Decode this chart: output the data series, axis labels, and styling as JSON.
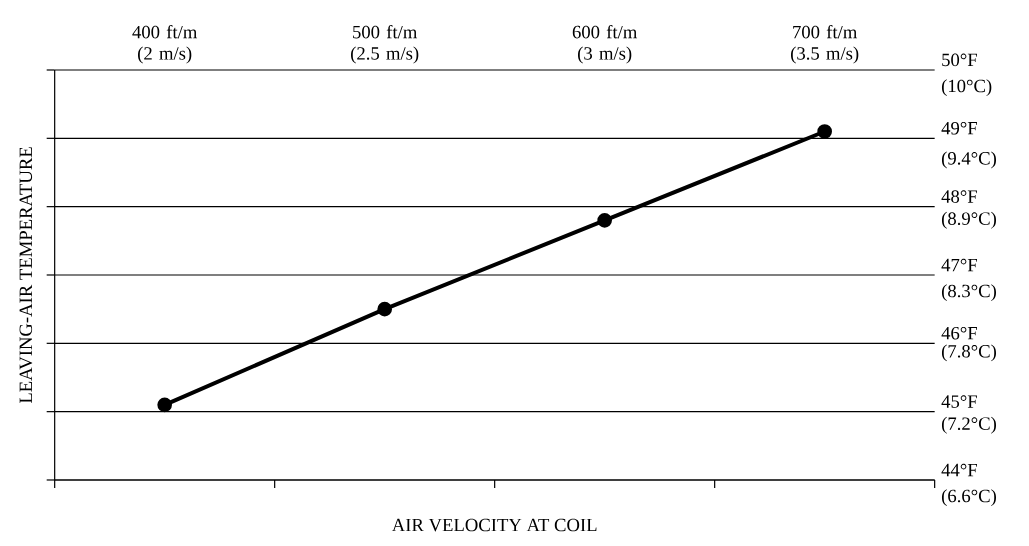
{
  "chart_data": {
    "type": "line",
    "xlabel": "AIR VELOCITY AT COIL",
    "ylabel": "LEAVING-AIR TEMPERATURE",
    "categories": [
      "400 ft/m (2 m/s)",
      "500 ft/m (2.5 m/s)",
      "600 ft/m (3 m/s)",
      "700 ft/m (3.5 m/s)"
    ],
    "values": [
      45.1,
      46.5,
      47.8,
      49.1
    ],
    "color": "#000000",
    "marker": "circle",
    "line_style": "solid",
    "grid": "y",
    "ylim": [
      44,
      50
    ],
    "yticks": [
      {
        "value": 44,
        "label": "44°F"
      },
      {
        "value": 45,
        "label": "45°F"
      },
      {
        "value": 46,
        "label": "46°F"
      },
      {
        "value": 47,
        "label": "47°F"
      },
      {
        "value": 48,
        "label": "48°F"
      },
      {
        "value": 49,
        "label": "49°F"
      },
      {
        "value": 50,
        "label": "50°F"
      }
    ],
    "y2lim": [
      6.6,
      10
    ],
    "y2ticks": [
      {
        "value": 6.6,
        "label": "(6.6°C)"
      },
      {
        "value": 7.2,
        "label": "(7.2°C)"
      },
      {
        "value": 7.8,
        "label": "(7.8°C)"
      },
      {
        "value": 8.3,
        "label": "(8.3°C)"
      },
      {
        "value": 8.9,
        "label": "(8.9°C)"
      },
      {
        "value": 9.4,
        "label": "(9.4°C)"
      },
      {
        "value": 10,
        "label": "(10°C)"
      }
    ]
  }
}
